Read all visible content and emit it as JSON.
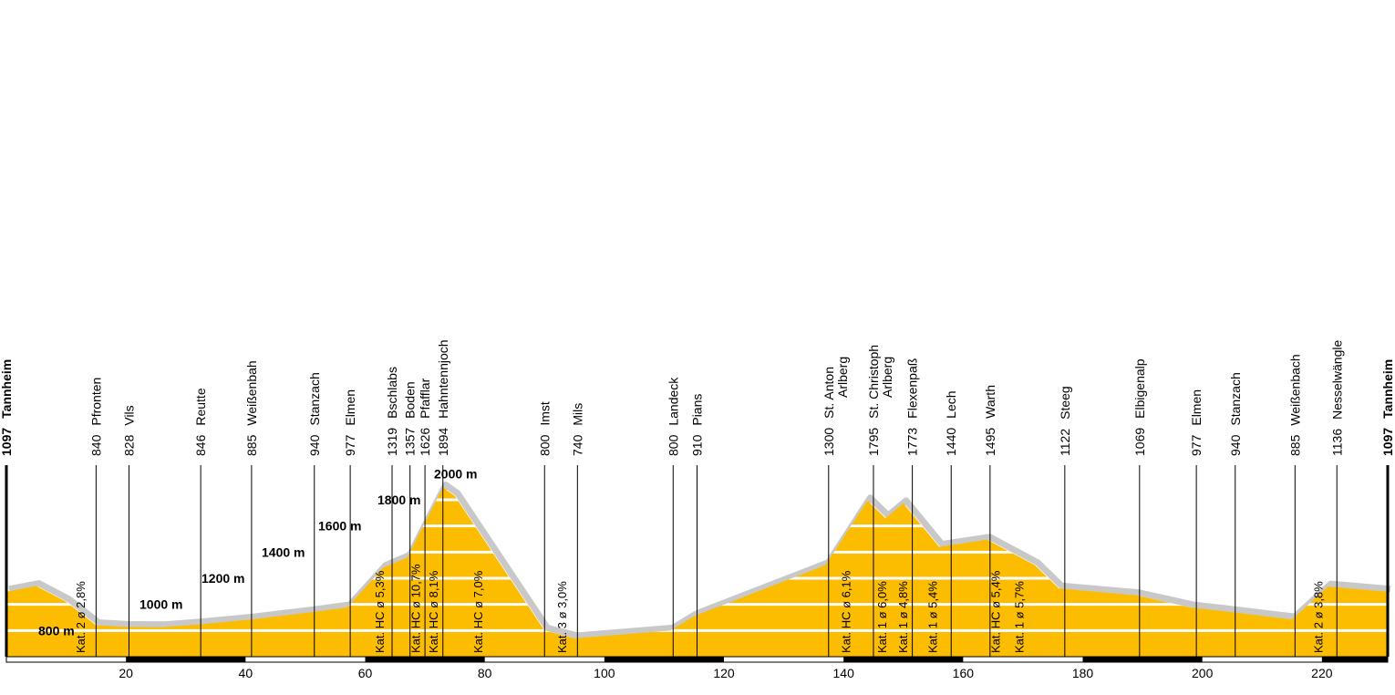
{
  "chart_data": {
    "type": "area",
    "fill_color": "#FCBC00",
    "shadow_color": "#c8c8c8",
    "xlim": [
      0,
      231
    ],
    "ylim": [
      600,
      2100
    ],
    "x_ticks": [
      20,
      40,
      60,
      80,
      100,
      120,
      140,
      160,
      180,
      200,
      220
    ],
    "y_gridlines": [
      {
        "value": 800,
        "label": "800 m"
      },
      {
        "value": 1000,
        "label": "1000 m"
      },
      {
        "value": 1200,
        "label": "1200 m"
      },
      {
        "value": 1400,
        "label": "1400 m"
      },
      {
        "value": 1600,
        "label": "1600 m"
      },
      {
        "value": 1800,
        "label": "1800 m"
      },
      {
        "value": 2000,
        "label": "2000 m"
      }
    ],
    "profile": [
      {
        "x": 0,
        "y": 1097
      },
      {
        "x": 5,
        "y": 1140
      },
      {
        "x": 10,
        "y": 1020
      },
      {
        "x": 15,
        "y": 840
      },
      {
        "x": 20,
        "y": 828
      },
      {
        "x": 26,
        "y": 825
      },
      {
        "x": 32,
        "y": 846
      },
      {
        "x": 41,
        "y": 885
      },
      {
        "x": 51,
        "y": 940
      },
      {
        "x": 57,
        "y": 977
      },
      {
        "x": 63,
        "y": 1280
      },
      {
        "x": 65,
        "y": 1319
      },
      {
        "x": 67,
        "y": 1357
      },
      {
        "x": 70,
        "y": 1626
      },
      {
        "x": 73,
        "y": 1894
      },
      {
        "x": 75,
        "y": 1830
      },
      {
        "x": 90,
        "y": 800
      },
      {
        "x": 95,
        "y": 740
      },
      {
        "x": 111,
        "y": 800
      },
      {
        "x": 115,
        "y": 910
      },
      {
        "x": 137,
        "y": 1300
      },
      {
        "x": 144,
        "y": 1795
      },
      {
        "x": 147,
        "y": 1660
      },
      {
        "x": 150,
        "y": 1773
      },
      {
        "x": 156,
        "y": 1440
      },
      {
        "x": 164,
        "y": 1495
      },
      {
        "x": 172,
        "y": 1300
      },
      {
        "x": 176,
        "y": 1122
      },
      {
        "x": 189,
        "y": 1069
      },
      {
        "x": 198,
        "y": 977
      },
      {
        "x": 205,
        "y": 940
      },
      {
        "x": 215,
        "y": 885
      },
      {
        "x": 221,
        "y": 1136
      },
      {
        "x": 231,
        "y": 1097
      }
    ],
    "places": [
      {
        "x": 0,
        "elev": "1097",
        "name": "Tannheim",
        "bold": true
      },
      {
        "x": 15,
        "elev": "840",
        "name": "Pfronten"
      },
      {
        "x": 20.5,
        "elev": "828",
        "name": "Vils"
      },
      {
        "x": 32.5,
        "elev": "846",
        "name": "Reutte"
      },
      {
        "x": 41,
        "elev": "885",
        "name": "Weißenbah"
      },
      {
        "x": 51.5,
        "elev": "940",
        "name": "Stanzach"
      },
      {
        "x": 57.5,
        "elev": "977",
        "name": "Elmen"
      },
      {
        "x": 64.5,
        "elev": "1319",
        "name": "Bschlabs"
      },
      {
        "x": 67.5,
        "elev": "1357",
        "name": "Boden"
      },
      {
        "x": 70,
        "elev": "1626",
        "name": "Pfafflar"
      },
      {
        "x": 73,
        "elev": "1894",
        "name": "Hahntennjoch"
      },
      {
        "x": 90,
        "elev": "800",
        "name": "Imst"
      },
      {
        "x": 95.5,
        "elev": "740",
        "name": "Mils"
      },
      {
        "x": 111.5,
        "elev": "800",
        "name": "Landeck"
      },
      {
        "x": 115.5,
        "elev": "910",
        "name": "Pians"
      },
      {
        "x": 137.5,
        "elev": "1300",
        "name": "St. Anton",
        "name2": "Arlberg"
      },
      {
        "x": 145,
        "elev": "1795",
        "name": "St. Christoph",
        "name2": "Arlberg"
      },
      {
        "x": 151.5,
        "elev": "1773",
        "name": "Flexenpaß"
      },
      {
        "x": 158,
        "elev": "1440",
        "name": "Lech"
      },
      {
        "x": 164.5,
        "elev": "1495",
        "name": "Warth"
      },
      {
        "x": 177,
        "elev": "1122",
        "name": "Steeg"
      },
      {
        "x": 189.5,
        "elev": "1069",
        "name": "Elbigenalp"
      },
      {
        "x": 199,
        "elev": "977",
        "name": "Elmen"
      },
      {
        "x": 205.5,
        "elev": "940",
        "name": "Stanzach"
      },
      {
        "x": 215.5,
        "elev": "885",
        "name": "Weißenbach"
      },
      {
        "x": 222.5,
        "elev": "1136",
        "name": "Nesselwängle"
      },
      {
        "x": 231,
        "elev": "1097",
        "name": "Tannheim",
        "bold": true
      }
    ],
    "climbs": [
      {
        "x": 12.5,
        "label": "Kat. 2  ø 2,8%"
      },
      {
        "x": 62.5,
        "label": "Kat. HC  ø 5,3%"
      },
      {
        "x": 68.5,
        "label": "Kat. HC  ø 10,7%"
      },
      {
        "x": 71.5,
        "label": "Kat. HC  ø 8,1%"
      },
      {
        "x": 79,
        "label": "Kat. HC  ø 7,0%"
      },
      {
        "x": 93,
        "label": "Kat. 3  ø 3,0%"
      },
      {
        "x": 140.5,
        "label": "Kat. HC  ø 6,1%"
      },
      {
        "x": 146.5,
        "label": "Kat. 1  ø 6,0%"
      },
      {
        "x": 150,
        "label": "Kat. 1  ø 4,8%"
      },
      {
        "x": 155,
        "label": "Kat. 1  ø 5,4%"
      },
      {
        "x": 165.5,
        "label": "Kat. HC  ø 5,4%"
      },
      {
        "x": 169.5,
        "label": "Kat. 1  ø 5,7%"
      },
      {
        "x": 219.5,
        "label": "Kat. 2  ø 3,8%"
      }
    ]
  }
}
